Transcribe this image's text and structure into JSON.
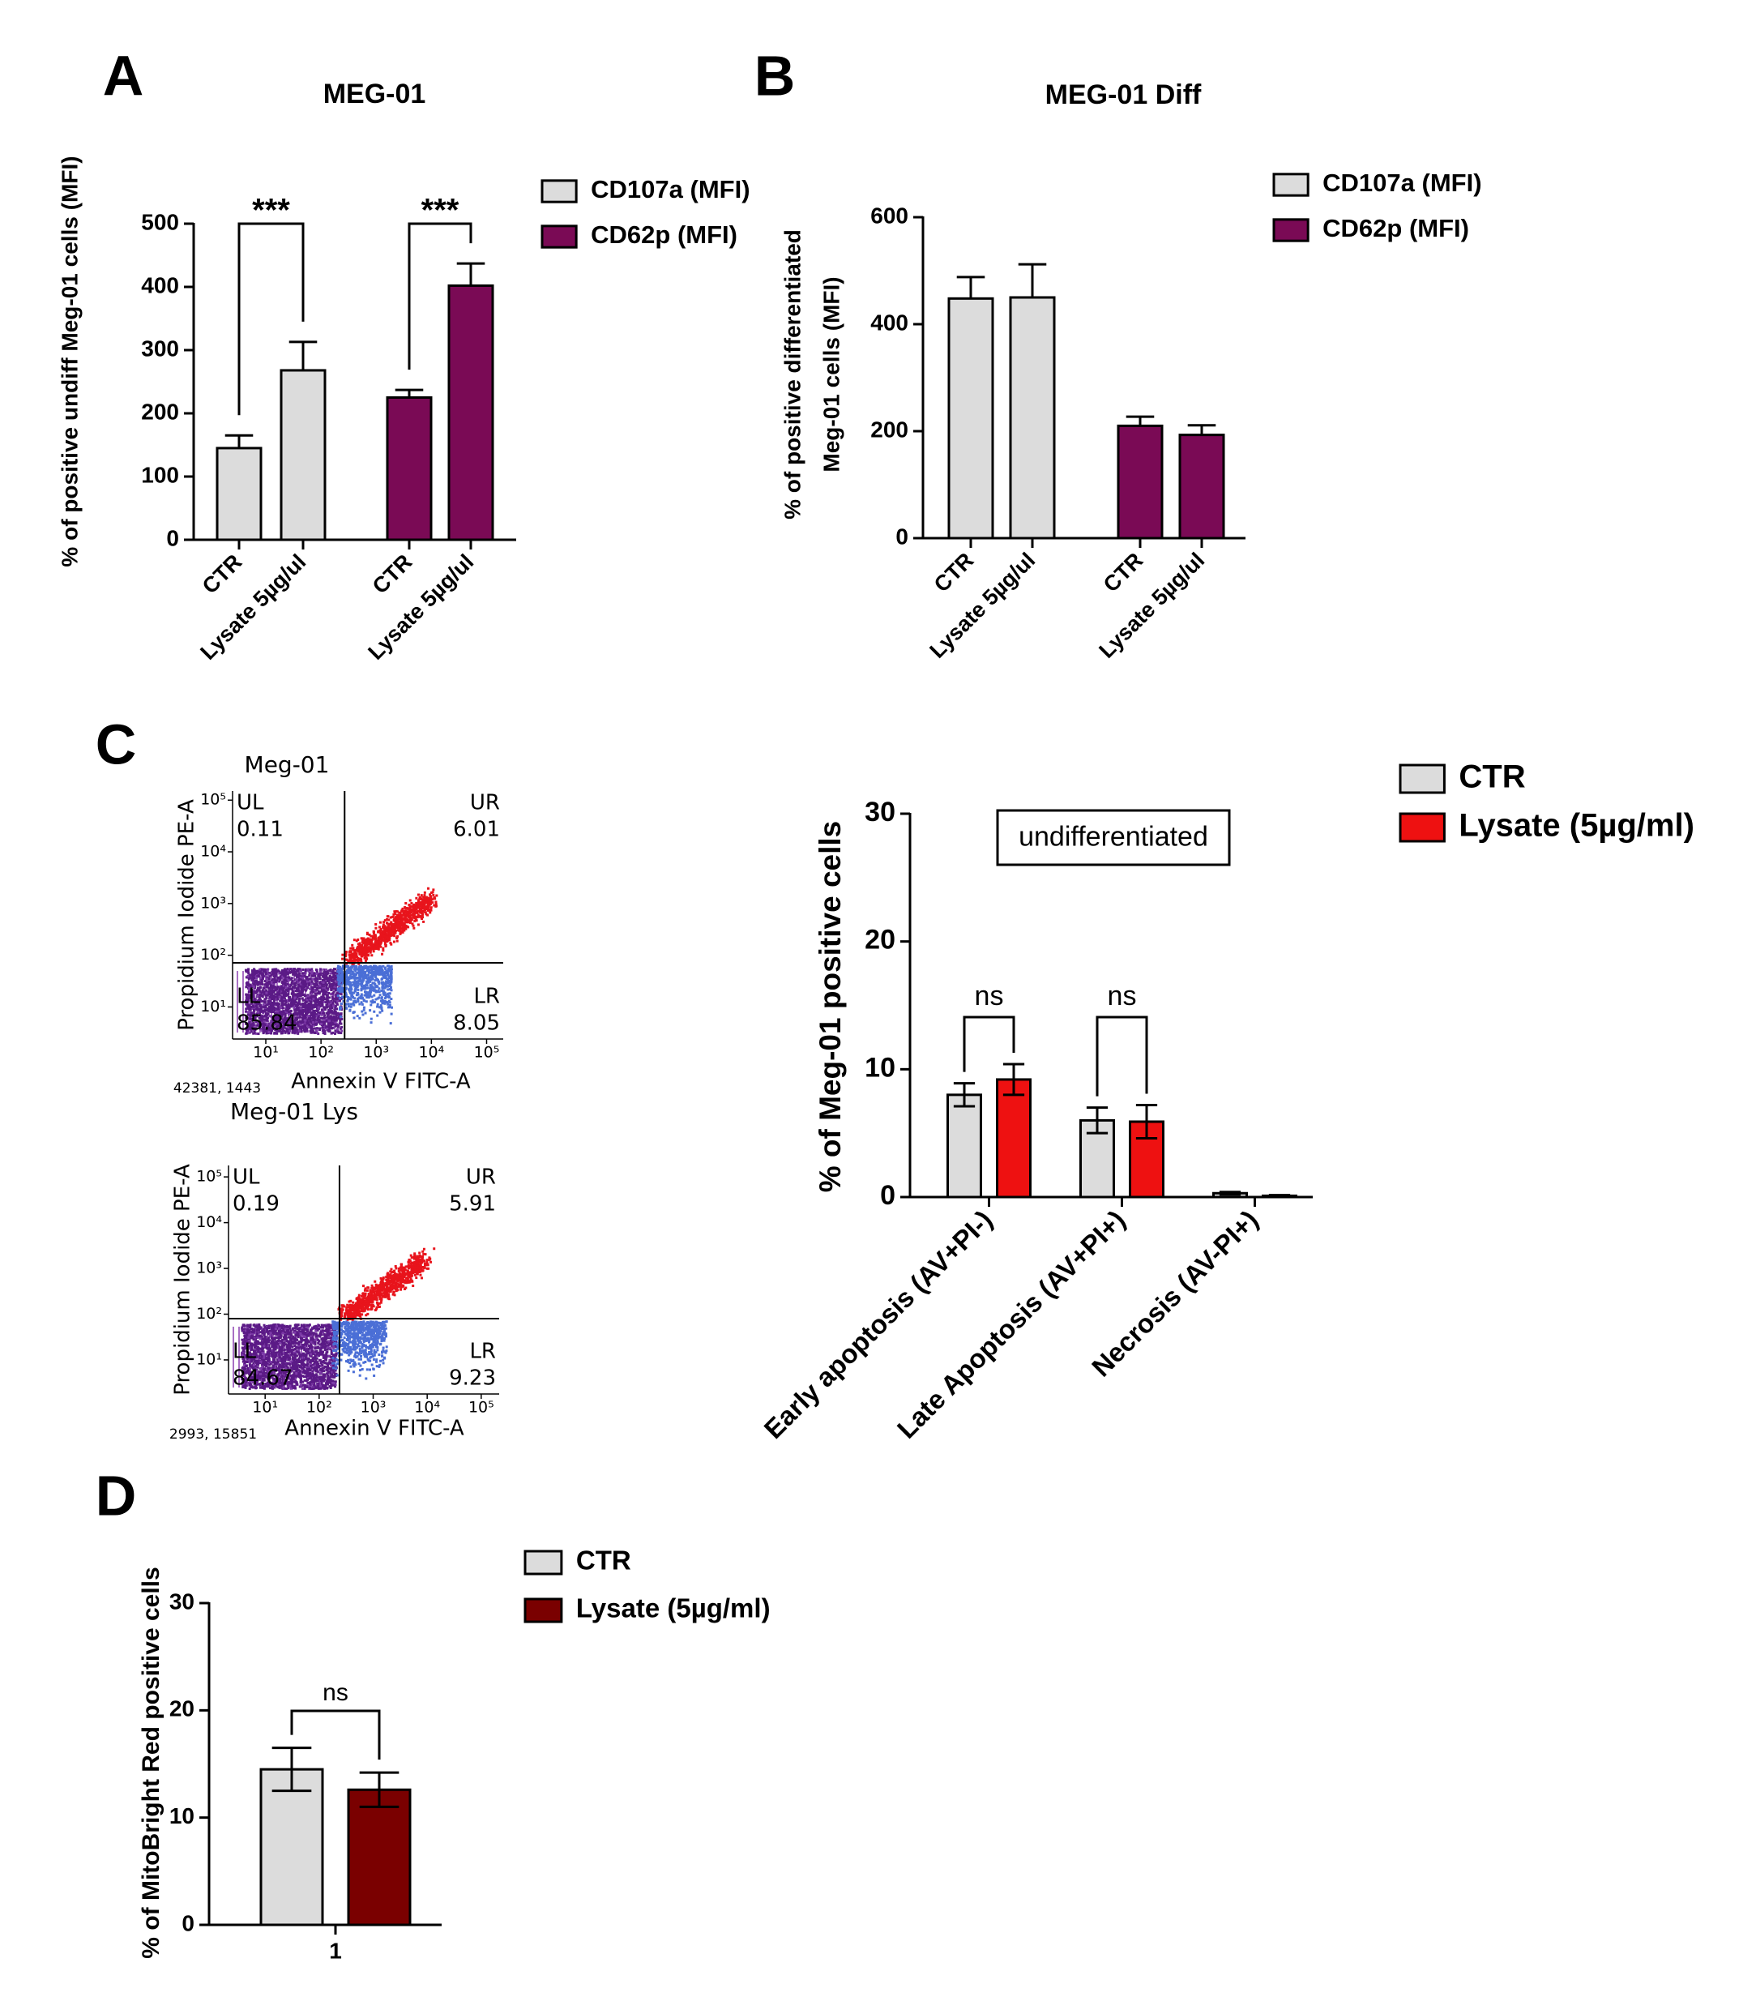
{
  "chart_data": [
    {
      "type": "bar",
      "panel": "A",
      "title": "MEG-01",
      "ylabel": "% of positive undiff Meg-01 cells (MFI)",
      "categories": [
        "CTR",
        "Lysate 5µg/ul",
        "CTR",
        "Lysate 5µg/ul"
      ],
      "series": [
        {
          "name": "CD107a (MFI)",
          "color": "#dcdcdc",
          "values": [
            145,
            268,
            null,
            null
          ],
          "errors": [
            20,
            45,
            null,
            null
          ]
        },
        {
          "name": "CD62p (MFI)",
          "color": "#7a0a55",
          "values": [
            null,
            null,
            225,
            402
          ],
          "errors": [
            null,
            null,
            12,
            35
          ]
        }
      ],
      "error_bars": "upper",
      "ylim": [
        0,
        500
      ],
      "yticks": [
        0,
        100,
        200,
        300,
        400,
        500
      ],
      "significance": [
        {
          "label": "***",
          "between": [
            [
              0,
              0
            ],
            [
              1,
              0
            ]
          ]
        },
        {
          "label": "***",
          "between": [
            [
              2,
              1
            ],
            [
              3,
              1
            ]
          ]
        }
      ]
    },
    {
      "type": "bar",
      "panel": "B",
      "title": "MEG-01 Diff",
      "ylabel": [
        "% of positive differentiated",
        "Meg-01 cells (MFI)"
      ],
      "categories": [
        "CTR",
        "Lysate 5µg/ul",
        "CTR",
        "Lysate 5µg/ul"
      ],
      "series": [
        {
          "name": "CD107a (MFI)",
          "color": "#dcdcdc",
          "values": [
            448,
            450,
            null,
            null
          ],
          "errors": [
            40,
            62,
            null,
            null
          ]
        },
        {
          "name": "CD62p (MFI)",
          "color": "#7a0a55",
          "values": [
            null,
            null,
            210,
            193
          ],
          "errors": [
            null,
            null,
            17,
            18
          ]
        }
      ],
      "error_bars": "upper",
      "ylim": [
        0,
        600
      ],
      "yticks": [
        0,
        200,
        400,
        600
      ]
    },
    {
      "type": "bar",
      "panel": "C",
      "ylabel": "% of Meg-01 positive cells",
      "annotation": "undifferentiated",
      "categories": [
        "Early apoptosis (AV+PI-)",
        "Late Apoptosis (AV+PI+)",
        "Necrosis (AV-PI+)"
      ],
      "series": [
        {
          "name": "CTR",
          "color": "#dcdcdc",
          "values": [
            8,
            6,
            0.3
          ],
          "errors": [
            0.9,
            1.0,
            0.1
          ]
        },
        {
          "name": "Lysate (5µg/ml)",
          "color": "#ee1111",
          "values": [
            9.2,
            5.9,
            0.1
          ],
          "errors": [
            1.2,
            1.3,
            0.05
          ]
        }
      ],
      "error_bars": "both",
      "ylim": [
        0,
        30
      ],
      "yticks": [
        0,
        10,
        20,
        30
      ],
      "significance": [
        {
          "label": "ns",
          "between": [
            [
              0,
              0
            ],
            [
              0,
              1
            ]
          ]
        },
        {
          "label": "ns",
          "between": [
            [
              1,
              0
            ],
            [
              1,
              1
            ]
          ]
        }
      ]
    },
    {
      "type": "bar",
      "panel": "D",
      "ylabel": "% of MitoBright Red positive cells",
      "categories": [
        "1"
      ],
      "series": [
        {
          "name": "CTR",
          "color": "#dcdcdc",
          "values": [
            14.5
          ],
          "errors": [
            2.0
          ]
        },
        {
          "name": "Lysate (5µg/ml)",
          "color": "#7a0000",
          "values": [
            12.6
          ],
          "errors": [
            1.6
          ]
        }
      ],
      "error_bars": "both",
      "ylim": [
        0,
        30
      ],
      "yticks": [
        0,
        10,
        20,
        30
      ],
      "significance": [
        {
          "label": "ns",
          "between": [
            [
              0,
              0
            ],
            [
              0,
              1
            ]
          ]
        }
      ]
    }
  ],
  "flow_plots": [
    {
      "title": "Meg-01",
      "xlabel": "Annexin V FITC-A",
      "ylabel": "Propidium Iodide PE-A",
      "footer": "42381, 1443",
      "log": true,
      "xlim": [
        2.5,
        200000
      ],
      "ylim": [
        2.4,
        150000
      ],
      "xticks": [
        {
          "value": 10,
          "label": "10¹"
        },
        {
          "value": 100,
          "label": "10²"
        },
        {
          "value": 1000,
          "label": "10³"
        },
        {
          "value": 10000,
          "label": "10⁴"
        },
        {
          "value": 100000,
          "label": "10⁵"
        }
      ],
      "yticks": [
        {
          "value": 10,
          "label": "10¹"
        },
        {
          "value": 100,
          "label": "10²"
        },
        {
          "value": 1000,
          "label": "10³"
        },
        {
          "value": 10000,
          "label": "10⁴"
        },
        {
          "value": 100000,
          "label": "10⁵"
        }
      ],
      "quadrants": [
        {
          "name": "UL",
          "value": 0.11
        },
        {
          "name": "UR",
          "value": 6.01
        },
        {
          "name": "LL",
          "value": 85.84
        },
        {
          "name": "LR",
          "value": 8.05
        }
      ]
    },
    {
      "title": "Meg-01 Lys",
      "xlabel": "Annexin V FITC-A",
      "ylabel": "Propidium Iodide PE-A",
      "footer": "2993, 15851",
      "log": true,
      "xlim": [
        2.1,
        215000
      ],
      "ylim": [
        1.8,
        178000
      ],
      "xticks": [
        {
          "value": 10,
          "label": "10¹"
        },
        {
          "value": 100,
          "label": "10²"
        },
        {
          "value": 1000,
          "label": "10³"
        },
        {
          "value": 10000,
          "label": "10⁴"
        },
        {
          "value": 100000,
          "label": "10⁵"
        }
      ],
      "yticks": [
        {
          "value": 10,
          "label": "10¹"
        },
        {
          "value": 100,
          "label": "10²"
        },
        {
          "value": 1000,
          "label": "10³"
        },
        {
          "value": 10000,
          "label": "10⁴"
        },
        {
          "value": 100000,
          "label": "10⁵"
        }
      ],
      "quadrants": [
        {
          "name": "UL",
          "value": 0.19
        },
        {
          "name": "UR",
          "value": 5.91
        },
        {
          "name": "LL",
          "value": 84.67
        },
        {
          "name": "LR",
          "value": 9.23
        }
      ]
    }
  ]
}
